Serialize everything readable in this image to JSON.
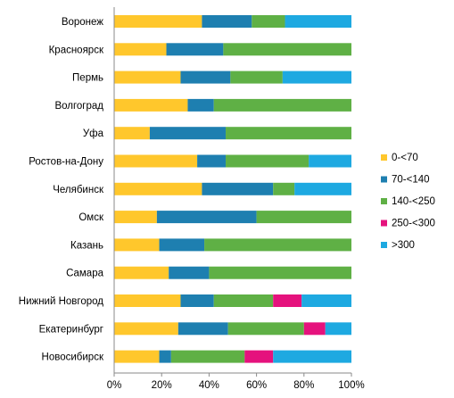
{
  "chart_data": {
    "type": "bar",
    "orientation": "horizontal",
    "stacked": "percent",
    "categories": [
      "Воронеж",
      "Красноярск",
      "Пермь",
      "Волгоград",
      "Уфа",
      "Ростов-на-Дону",
      "Челябинск",
      "Омск",
      "Казань",
      "Самара",
      "Нижний Новгород",
      "Екатеринбург",
      "Новосибирск"
    ],
    "series": [
      {
        "name": "0-<70",
        "color": "#FFC72C",
        "values": [
          37,
          22,
          28,
          31,
          15,
          35,
          37,
          18,
          19,
          23,
          28,
          27,
          19
        ]
      },
      {
        "name": "70-<140",
        "color": "#1E7FB0",
        "values": [
          21,
          24,
          21,
          11,
          32,
          12,
          30,
          42,
          19,
          17,
          14,
          21,
          5
        ]
      },
      {
        "name": "140-<250",
        "color": "#5FB045",
        "values": [
          14,
          54,
          22,
          58,
          53,
          35,
          9,
          40,
          62,
          60,
          25,
          32,
          31
        ]
      },
      {
        "name": "250-<300",
        "color": "#E5127D",
        "values": [
          0,
          0,
          0,
          0,
          0,
          0,
          0,
          0,
          0,
          0,
          12,
          9,
          12
        ]
      },
      {
        "name": ">300",
        "color": "#1EA9E1",
        "values": [
          28,
          0,
          29,
          0,
          0,
          18,
          24,
          0,
          0,
          0,
          21,
          11,
          33
        ]
      }
    ],
    "xlim": [
      0,
      100
    ],
    "x_ticks": [
      "0%",
      "20%",
      "40%",
      "60%",
      "80%",
      "100%"
    ],
    "grid": false,
    "legend_position": "right"
  }
}
